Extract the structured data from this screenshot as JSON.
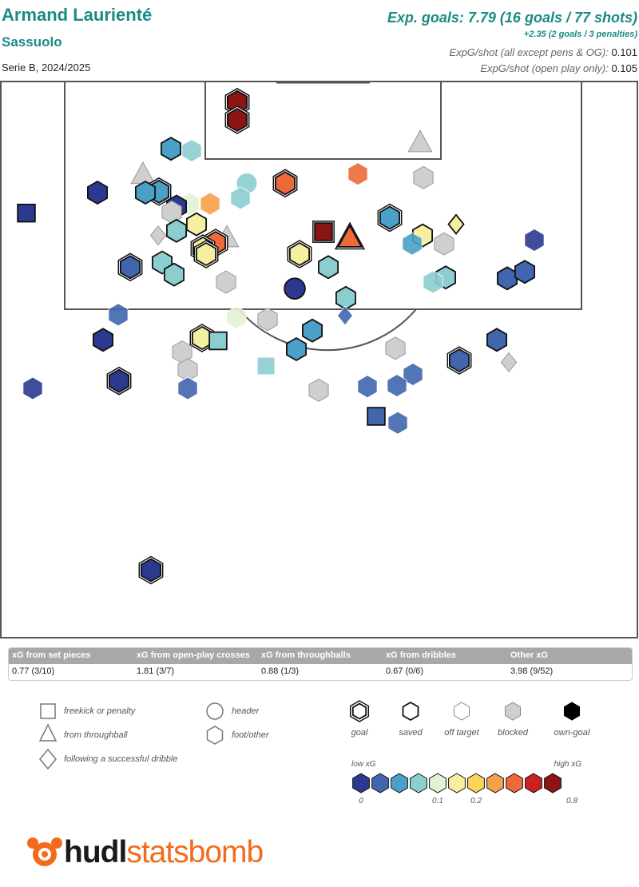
{
  "header": {
    "player_name": "Armand Laurienté",
    "team_name": "Sassuolo",
    "season": "Serie B, 2024/2025",
    "exp_goals_line": "Exp. goals: 7.79 (16 goals / 77 shots)",
    "pens_line": "+2.35 (2 goals / 3 penalties)",
    "expg_all_label": "ExpG/shot (all except pens & OG):",
    "expg_all_value": "0.101",
    "expg_open_label": "ExpG/shot (open play only):",
    "expg_open_value": "0.105"
  },
  "xg_categories": [
    {
      "label": "xG from set pieces",
      "value": "0.77 (3/10)"
    },
    {
      "label": "xG from open-play crosses",
      "value": "1.81 (3/7)"
    },
    {
      "label": "xG from throughballs",
      "value": "0.88 (1/3)"
    },
    {
      "label": "xG from dribbles",
      "value": "0.67 (0/6)"
    },
    {
      "label": "Other xG",
      "value": "3.98 (9/52)"
    }
  ],
  "legend": {
    "shape_labels": {
      "square": "freekick or penalty",
      "triangle": "from throughball",
      "diamond": "following a successful dribble",
      "circle": "header",
      "hexagon": "foot/other"
    },
    "outcome_labels": {
      "goal": "goal",
      "saved": "saved",
      "off": "off target",
      "blocked": "blocked",
      "own": "own-goal"
    },
    "low_xg": "low xG",
    "high_xg": "high xG",
    "scale_ticks": [
      {
        "label": "0",
        "index": 0
      },
      {
        "label": "0.1",
        "index": 4
      },
      {
        "label": "0.2",
        "index": 5
      },
      {
        "label": "0.8",
        "index": 9
      }
    ],
    "colors": [
      "#2b3a8f",
      "#4166ad",
      "#4aa0c8",
      "#8ccdd0",
      "#e2f2d4",
      "#f6efa0",
      "#fbd45c",
      "#f6a14a",
      "#ec6a3a",
      "#c92121",
      "#8b1414"
    ],
    "blocked_color": "#cfcfcf"
  },
  "logo": {
    "hudl": "hudl",
    "statsbomb": "statsbomb"
  },
  "chart_data": {
    "type": "scatter",
    "description_units": "pitch x = 0-80 across width (left to right), y = 0-60 from goal line downward",
    "shots": [
      {
        "x": 29.7,
        "y": 2.3,
        "shape": "hexagon",
        "outcome": "goal",
        "xg": 0.76
      },
      {
        "x": 29.7,
        "y": 4.2,
        "shape": "hexagon",
        "outcome": "goal",
        "xg": 0.78
      },
      {
        "x": 52.6,
        "y": 6.6,
        "shape": "triangle",
        "outcome": "blocked",
        "xg": 0.3
      },
      {
        "x": 21.4,
        "y": 7.3,
        "shape": "hexagon",
        "outcome": "saved",
        "xg": 0.05
      },
      {
        "x": 24.0,
        "y": 7.5,
        "shape": "hexagon",
        "outcome": "off",
        "xg": 0.07
      },
      {
        "x": 17.9,
        "y": 10.0,
        "shape": "triangle",
        "outcome": "blocked",
        "xg": 0.2
      },
      {
        "x": 44.8,
        "y": 10.0,
        "shape": "hexagon",
        "outcome": "off",
        "xg": 0.58
      },
      {
        "x": 53.0,
        "y": 10.4,
        "shape": "hexagon",
        "outcome": "blocked",
        "xg": 0.3
      },
      {
        "x": 35.7,
        "y": 11.0,
        "shape": "hexagon",
        "outcome": "goal",
        "xg": 0.5
      },
      {
        "x": 30.9,
        "y": 11.0,
        "shape": "circle",
        "outcome": "off",
        "xg": 0.08
      },
      {
        "x": 12.2,
        "y": 12.0,
        "shape": "hexagon",
        "outcome": "saved",
        "xg": 0.02
      },
      {
        "x": 19.9,
        "y": 11.9,
        "shape": "hexagon",
        "outcome": "goal",
        "xg": 0.05
      },
      {
        "x": 18.2,
        "y": 12.0,
        "shape": "hexagon",
        "outcome": "saved",
        "xg": 0.05
      },
      {
        "x": 30.1,
        "y": 12.6,
        "shape": "hexagon",
        "outcome": "off",
        "xg": 0.07
      },
      {
        "x": 23.7,
        "y": 13.2,
        "shape": "hexagon",
        "outcome": "off",
        "xg": 0.09
      },
      {
        "x": 26.3,
        "y": 13.2,
        "shape": "hexagon",
        "outcome": "off",
        "xg": 0.3
      },
      {
        "x": 22.1,
        "y": 13.5,
        "shape": "hexagon",
        "outcome": "saved",
        "xg": 0.02
      },
      {
        "x": 21.5,
        "y": 14.1,
        "shape": "hexagon",
        "outcome": "blocked",
        "xg": 0.3
      },
      {
        "x": 48.8,
        "y": 14.7,
        "shape": "hexagon",
        "outcome": "goal",
        "xg": 0.05
      },
      {
        "x": 22.1,
        "y": 16.1,
        "shape": "hexagon",
        "outcome": "saved",
        "xg": 0.07
      },
      {
        "x": 24.6,
        "y": 15.4,
        "shape": "hexagon",
        "outcome": "saved",
        "xg": 0.12
      },
      {
        "x": 57.1,
        "y": 15.4,
        "shape": "diamond",
        "outcome": "saved",
        "xg": 0.12
      },
      {
        "x": 19.8,
        "y": 16.6,
        "shape": "diamond",
        "outcome": "blocked",
        "xg": 0.3
      },
      {
        "x": 40.5,
        "y": 16.2,
        "shape": "square",
        "outcome": "goal",
        "xg": 0.78
      },
      {
        "x": 43.8,
        "y": 16.8,
        "shape": "triangle",
        "outcome": "goal",
        "xg": 0.58
      },
      {
        "x": 52.9,
        "y": 16.6,
        "shape": "hexagon",
        "outcome": "saved",
        "xg": 0.12
      },
      {
        "x": 28.4,
        "y": 16.8,
        "shape": "triangle",
        "outcome": "blocked",
        "xg": 0.3
      },
      {
        "x": 26.4,
        "y": 17.5,
        "shape": "hexagon",
        "outcome": "saved",
        "xg": 0.05
      },
      {
        "x": 27.0,
        "y": 17.4,
        "shape": "hexagon",
        "outcome": "goal",
        "xg": 0.4
      },
      {
        "x": 25.4,
        "y": 18.0,
        "shape": "hexagon",
        "outcome": "goal",
        "xg": 0.12
      },
      {
        "x": 25.8,
        "y": 18.6,
        "shape": "hexagon",
        "outcome": "goal",
        "xg": 0.12
      },
      {
        "x": 51.6,
        "y": 17.5,
        "shape": "hexagon",
        "outcome": "off",
        "xg": 0.05
      },
      {
        "x": 55.6,
        "y": 17.5,
        "shape": "hexagon",
        "outcome": "blocked",
        "xg": 0.3
      },
      {
        "x": 66.9,
        "y": 17.1,
        "shape": "hexagon",
        "outcome": "off",
        "xg": 0.02
      },
      {
        "x": 37.5,
        "y": 18.6,
        "shape": "hexagon",
        "outcome": "goal",
        "xg": 0.15
      },
      {
        "x": 20.3,
        "y": 19.5,
        "shape": "hexagon",
        "outcome": "saved",
        "xg": 0.07
      },
      {
        "x": 16.3,
        "y": 20.0,
        "shape": "hexagon",
        "outcome": "goal",
        "xg": 0.04
      },
      {
        "x": 41.1,
        "y": 20.0,
        "shape": "hexagon",
        "outcome": "saved",
        "xg": 0.07
      },
      {
        "x": 21.8,
        "y": 20.8,
        "shape": "hexagon",
        "outcome": "saved",
        "xg": 0.07
      },
      {
        "x": 63.5,
        "y": 21.2,
        "shape": "hexagon",
        "outcome": "saved",
        "xg": 0.04
      },
      {
        "x": 65.7,
        "y": 20.5,
        "shape": "hexagon",
        "outcome": "saved",
        "xg": 0.04
      },
      {
        "x": 55.8,
        "y": 21.1,
        "shape": "hexagon",
        "outcome": "saved",
        "xg": 0.07
      },
      {
        "x": 54.2,
        "y": 21.6,
        "shape": "hexagon",
        "outcome": "off",
        "xg": 0.07
      },
      {
        "x": 28.3,
        "y": 21.6,
        "shape": "hexagon",
        "outcome": "blocked",
        "xg": 0.3
      },
      {
        "x": 36.9,
        "y": 22.3,
        "shape": "circle",
        "outcome": "saved",
        "xg": 0.015
      },
      {
        "x": 43.3,
        "y": 23.3,
        "shape": "hexagon",
        "outcome": "saved",
        "xg": 0.07
      },
      {
        "x": 14.8,
        "y": 25.1,
        "shape": "hexagon",
        "outcome": "off",
        "xg": 0.03
      },
      {
        "x": 43.2,
        "y": 25.2,
        "shape": "diamond",
        "outcome": "off",
        "xg": 0.04
      },
      {
        "x": 29.6,
        "y": 25.4,
        "shape": "hexagon",
        "outcome": "off",
        "xg": 0.1
      },
      {
        "x": 33.5,
        "y": 25.6,
        "shape": "hexagon",
        "outcome": "blocked",
        "xg": 0.3
      },
      {
        "x": 12.9,
        "y": 27.8,
        "shape": "hexagon",
        "outcome": "saved",
        "xg": 0.015
      },
      {
        "x": 25.3,
        "y": 27.6,
        "shape": "hexagon",
        "outcome": "goal",
        "xg": 0.15
      },
      {
        "x": 27.3,
        "y": 27.9,
        "shape": "square",
        "outcome": "saved",
        "xg": 0.08
      },
      {
        "x": 39.1,
        "y": 26.8,
        "shape": "hexagon",
        "outcome": "saved",
        "xg": 0.05
      },
      {
        "x": 62.2,
        "y": 27.8,
        "shape": "hexagon",
        "outcome": "saved",
        "xg": 0.03
      },
      {
        "x": 37.1,
        "y": 28.8,
        "shape": "hexagon",
        "outcome": "saved",
        "xg": 0.05
      },
      {
        "x": 22.8,
        "y": 29.1,
        "shape": "hexagon",
        "outcome": "blocked",
        "xg": 0.3
      },
      {
        "x": 49.5,
        "y": 28.7,
        "shape": "hexagon",
        "outcome": "blocked",
        "xg": 0.3
      },
      {
        "x": 57.5,
        "y": 30.0,
        "shape": "hexagon",
        "outcome": "goal",
        "xg": 0.03
      },
      {
        "x": 63.7,
        "y": 30.2,
        "shape": "diamond",
        "outcome": "blocked",
        "xg": 0.3
      },
      {
        "x": 33.3,
        "y": 30.6,
        "shape": "square",
        "outcome": "off",
        "xg": 0.07
      },
      {
        "x": 23.5,
        "y": 31.0,
        "shape": "hexagon",
        "outcome": "blocked",
        "xg": 0.3
      },
      {
        "x": 51.7,
        "y": 31.5,
        "shape": "hexagon",
        "outcome": "off",
        "xg": 0.03
      },
      {
        "x": 14.9,
        "y": 32.2,
        "shape": "hexagon",
        "outcome": "goal",
        "xg": 0.015
      },
      {
        "x": 4.1,
        "y": 33.0,
        "shape": "hexagon",
        "outcome": "off",
        "xg": 0.015
      },
      {
        "x": 23.5,
        "y": 33.0,
        "shape": "hexagon",
        "outcome": "off",
        "xg": 0.03
      },
      {
        "x": 46.0,
        "y": 32.8,
        "shape": "hexagon",
        "outcome": "off",
        "xg": 0.035
      },
      {
        "x": 49.7,
        "y": 32.7,
        "shape": "hexagon",
        "outcome": "off",
        "xg": 0.035
      },
      {
        "x": 39.9,
        "y": 33.2,
        "shape": "hexagon",
        "outcome": "blocked",
        "xg": 0.3
      },
      {
        "x": 47.1,
        "y": 36.0,
        "shape": "square",
        "outcome": "saved",
        "xg": 0.04
      },
      {
        "x": 49.8,
        "y": 36.7,
        "shape": "hexagon",
        "outcome": "off",
        "xg": 0.03
      },
      {
        "x": 18.9,
        "y": 52.5,
        "shape": "hexagon",
        "outcome": "goal",
        "xg": 0.02
      },
      {
        "x": 3.3,
        "y": 14.2,
        "shape": "square",
        "outcome": "saved",
        "xg": 0.015
      }
    ]
  }
}
